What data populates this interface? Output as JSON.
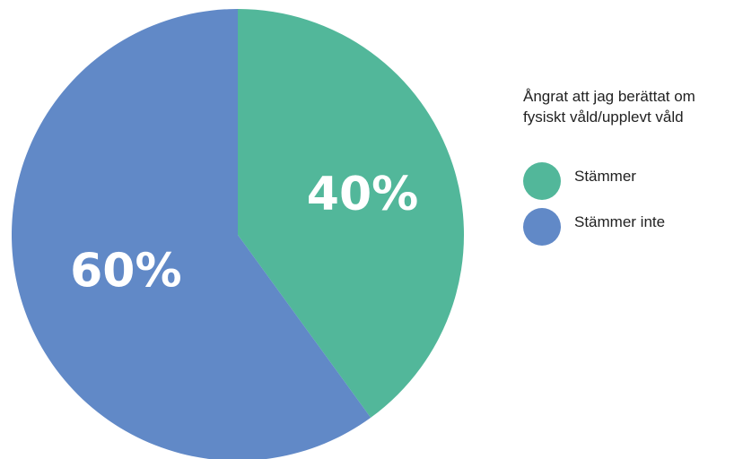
{
  "chart_data": {
    "type": "pie",
    "title": "Ångrat att jag berättat om fysiskt våld/upplevt våld",
    "categories": [
      "Stämmer",
      "Stämmer inte"
    ],
    "values": [
      40,
      60
    ],
    "labels": [
      "40%",
      "60%"
    ],
    "colors": [
      "#52b79a",
      "#6189c7"
    ],
    "start_angle": "12 o'clock, clockwise",
    "legend_position": "right"
  }
}
